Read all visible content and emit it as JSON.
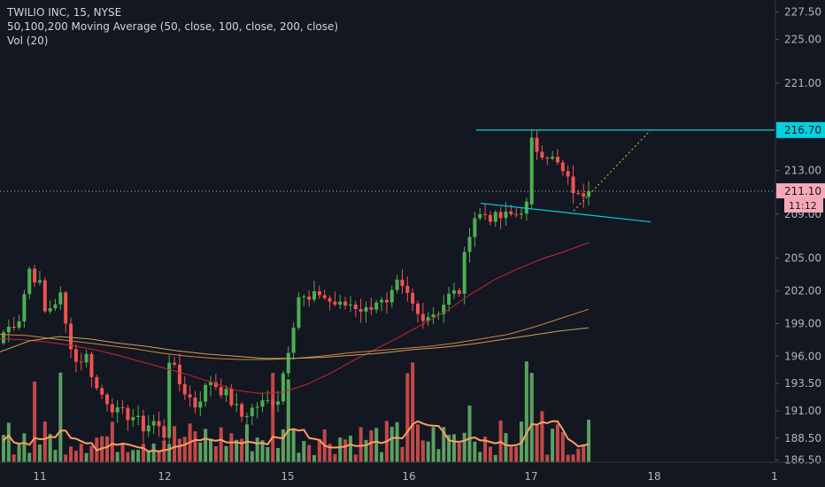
{
  "legend": {
    "title": "TWILIO INC, 15, NYSE",
    "ma": "50,100,200 Moving Average (50, close, 100, close, 200, close)",
    "vol": "Vol (20)"
  },
  "price_tags": {
    "resistance": "216.70",
    "last": "211.10",
    "countdown": "11:12"
  },
  "colors": {
    "background": "#131722",
    "up": "#4caf50",
    "down": "#ef5350",
    "vol_up": "#68b86b",
    "vol_down": "#e0524f",
    "ma50": "#c62828",
    "ma100": "#d2843c",
    "ma200": "#c9a15c",
    "vol_ma": "#ff9e62",
    "trendline": "#00d1e0",
    "last_price": "#f5a47a",
    "projection": "#b7b11e",
    "axis_text": "#b2b5be"
  },
  "chart_data": {
    "type": "candlestick",
    "title": "TWILIO INC, 15, NYSE",
    "y_axis_ticks": [
      "227.50",
      "225.00",
      "221.00",
      "216.70",
      "213.00",
      "211.10",
      "209.00",
      "205.00",
      "202.00",
      "199.00",
      "196.00",
      "193.50",
      "191.00",
      "188.50",
      "186.50"
    ],
    "y_range": [
      186.3,
      228.2
    ],
    "x_axis_ticks": [
      "11",
      "12",
      "15",
      "16",
      "17",
      "18",
      "1"
    ],
    "current_price": 211.1,
    "resistance_level": 216.7,
    "series": [
      {
        "name": "50 MA",
        "values": [
          197.6,
          197.5,
          197.3,
          197.0,
          196.6,
          196.1,
          195.5,
          194.9,
          194.3,
          193.6,
          192.9,
          192.6,
          192.7,
          193.4,
          194.4,
          195.6,
          196.7,
          197.8,
          199.0,
          200.2,
          201.7,
          203.0,
          204.0,
          204.9,
          205.6,
          206.4
        ]
      },
      {
        "name": "100 MA",
        "values": [
          198.0,
          197.9,
          197.6,
          197.3,
          197.0,
          196.7,
          196.3,
          196.0,
          195.8,
          195.7,
          195.7,
          195.8,
          196.0,
          196.3,
          196.5,
          196.7,
          196.9,
          197.2,
          197.6,
          198.0,
          198.7,
          199.5,
          200.3
        ]
      },
      {
        "name": "200 MA",
        "values": [
          196.4,
          197.4,
          197.8,
          197.6,
          197.2,
          196.9,
          196.5,
          196.2,
          196.0,
          195.8,
          195.8,
          195.9,
          196.1,
          196.3,
          196.6,
          196.8,
          197.1,
          197.5,
          197.9,
          198.3,
          198.6
        ]
      }
    ]
  }
}
